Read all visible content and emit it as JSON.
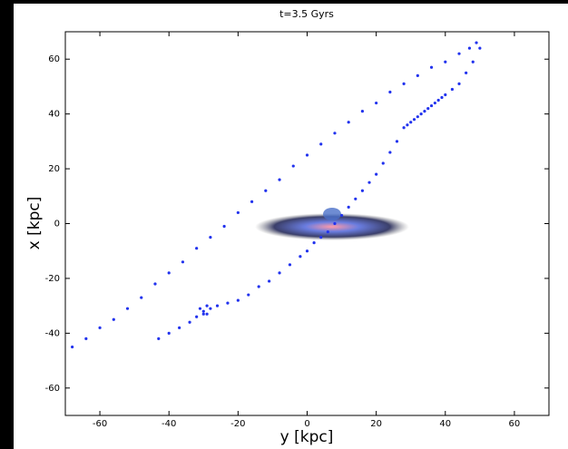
{
  "chart_data": {
    "type": "scatter",
    "title": "t=3.5 Gyrs",
    "x_label": "y [kpc]",
    "y_label": "x [kpc]",
    "color": "#2233ee",
    "x": [
      -68,
      -64,
      -60,
      -56,
      -52,
      -48,
      -44,
      -40,
      -36,
      -32,
      -28,
      -24,
      -20,
      -16,
      -12,
      -8,
      -4,
      0,
      4,
      8,
      12,
      16,
      20,
      24,
      28,
      32,
      36,
      40,
      44,
      47,
      49,
      50,
      48,
      46,
      44,
      42,
      40,
      39,
      38,
      37,
      36,
      35,
      34,
      33,
      32,
      31,
      30,
      29,
      28,
      26,
      24,
      22,
      20,
      18,
      16,
      14,
      12,
      10,
      8,
      6,
      4,
      2,
      0,
      -2,
      -5,
      -8,
      -11,
      -14,
      -17,
      -20,
      -23,
      -26,
      -28,
      -29,
      -30,
      -31,
      -30,
      -29,
      -32,
      -34,
      -37,
      -40,
      -43
    ],
    "y": [
      -45,
      -42,
      -38,
      -35,
      -31,
      -27,
      -22,
      -18,
      -14,
      -9,
      -5,
      -1,
      4,
      8,
      12,
      16,
      21,
      25,
      29,
      33,
      37,
      41,
      44,
      48,
      51,
      54,
      57,
      59,
      62,
      64,
      66,
      64,
      59,
      55,
      51,
      49,
      47,
      46,
      45,
      44,
      43,
      42,
      41,
      40,
      39,
      38,
      37,
      36,
      35,
      30,
      26,
      22,
      18,
      15,
      12,
      9,
      6,
      3,
      0,
      -3,
      -5,
      -7,
      -10,
      -12,
      -15,
      -18,
      -21,
      -23,
      -26,
      -28,
      -29,
      -30,
      -31,
      -30,
      -32,
      -31,
      -33,
      -33,
      -34,
      -36,
      -38,
      -40,
      -42
    ],
    "xlim": [
      -70,
      70
    ],
    "ylim": [
      -70,
      70
    ],
    "xticks": [
      -60,
      -40,
      -20,
      0,
      20,
      40,
      60
    ],
    "yticks": [
      -60,
      -40,
      -20,
      0,
      20,
      40,
      60
    ]
  }
}
